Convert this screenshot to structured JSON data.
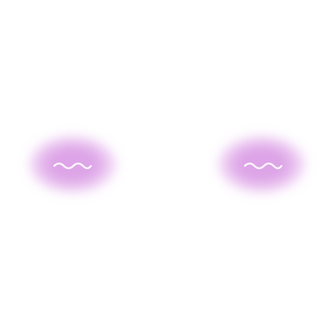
{
  "colors": {
    "background": "#ffffff",
    "blush_core": "#dca0e6",
    "blush_edge": "#f6e3f9",
    "squiggle_stroke": "#ffffff"
  },
  "elements": {
    "left_blush": {
      "icon": "blush-cheek-icon"
    },
    "right_blush": {
      "icon": "blush-cheek-icon"
    },
    "left_squiggle": {
      "icon": "squiggle-icon"
    },
    "right_squiggle": {
      "icon": "squiggle-icon"
    }
  }
}
